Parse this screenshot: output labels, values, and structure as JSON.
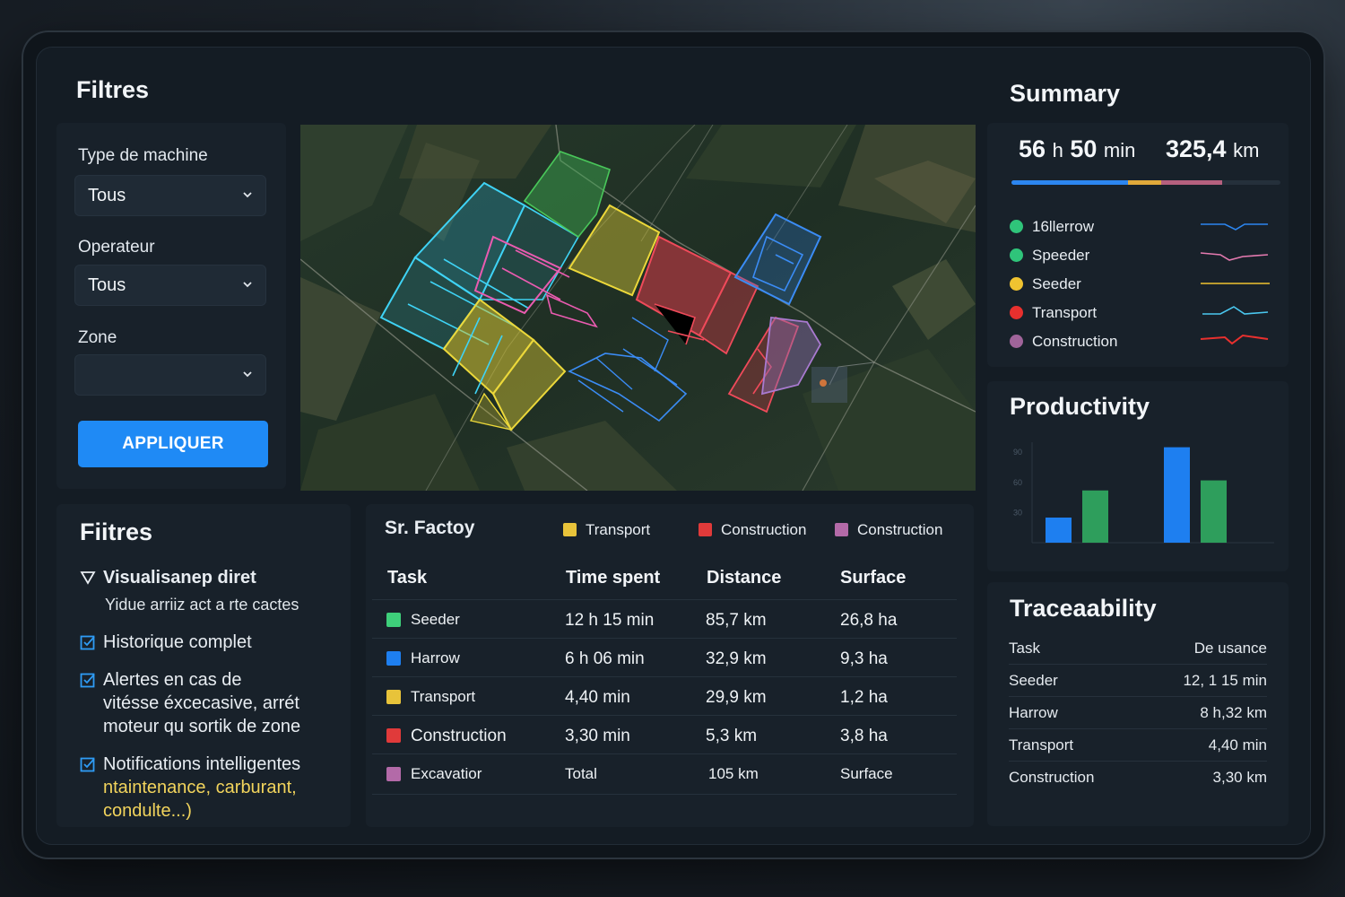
{
  "filters": {
    "title": "Filtres",
    "machine_type_label": "Type de machine",
    "machine_type_value": "Tous",
    "operator_label": "Operateur",
    "operator_value": "Tous",
    "zone_label": "Zone",
    "zone_value": "",
    "apply_label": "APPLIQUER"
  },
  "features": {
    "title": "Fiitres",
    "items": [
      {
        "icon": "funnel-icon",
        "line1": "Visualisanep diret",
        "line2": "Yidue arriiz act a rte cactes"
      },
      {
        "icon": "checkbox-icon",
        "line1": "Historique complet"
      },
      {
        "icon": "checkbox-icon",
        "line1": "Alertes en cas de",
        "line2": "vitésse éxcecasive, arrét",
        "line3": "moteur qu sortik de zone"
      },
      {
        "icon": "checkbox-icon",
        "line1": "Notifications intelligentes",
        "line2": "ntaintenance, carburant,",
        "line3": "condulte...)"
      }
    ]
  },
  "table": {
    "title": "Sr. Factoy",
    "legend": [
      {
        "label": "Transport",
        "color": "#e8c33a"
      },
      {
        "label": "Construction",
        "color": "#e03a3a"
      },
      {
        "label": "Construction",
        "color": "#b36aa8"
      }
    ],
    "headers": [
      "Task",
      "Time spent",
      "Distance",
      "Surface"
    ],
    "rows": [
      {
        "task": "Seeder",
        "time": "12 h 15 min",
        "distance": "85,7 km",
        "surface": "26,8 ha",
        "color": "#3ecf7a"
      },
      {
        "task": "Harrow",
        "time": "6 h 06 min",
        "distance": "32,9 km",
        "surface": "9,3 ha",
        "color": "#1e7ff0"
      },
      {
        "task": "Transport",
        "time": "4,40 min",
        "distance": "29,9 km",
        "surface": "1,2 ha",
        "color": "#e8c33a"
      },
      {
        "task": "Construction",
        "time": "3,30 min",
        "distance": "5,3 km",
        "surface": "3,8 ha",
        "color": "#e03a3a"
      },
      {
        "task": "Excavatior",
        "time": "Total",
        "distance": "105 km",
        "surface": "Surface",
        "color": "#b36aa8"
      }
    ]
  },
  "summary": {
    "title": "Summary",
    "time_num1": "56",
    "time_unit1": "h",
    "time_num2": "50",
    "time_unit2": "min",
    "dist_num": "325,4",
    "dist_unit": "km",
    "items": [
      {
        "label": "16llerrow",
        "color": "#2fc47a"
      },
      {
        "label": "Speeder",
        "color": "#2fc47a"
      },
      {
        "label": "Seeder",
        "color": "#f0c330"
      },
      {
        "label": "Transport",
        "color": "#e8302e"
      },
      {
        "label": "Construction",
        "color": "#a0649a"
      }
    ]
  },
  "productivity": {
    "title": "Productivity"
  },
  "chart_data": {
    "type": "bar",
    "categories": [
      "",
      ""
    ],
    "series": [
      {
        "color": "#1e7ff0",
        "values": [
          25,
          95
        ]
      },
      {
        "color": "#2e9e5c",
        "values": [
          52,
          62
        ]
      }
    ],
    "yticks": [
      "90",
      "60",
      "30"
    ],
    "ylim": [
      0,
      100
    ]
  },
  "traceability": {
    "title": "Traceaability",
    "header_left": "Task",
    "header_right": "De usance",
    "rows": [
      {
        "task": "Seeder",
        "value": "12, 1 15 min"
      },
      {
        "task": "Harrow",
        "value": "8 h,32 km"
      },
      {
        "task": "Transport",
        "value": "4,40 min"
      },
      {
        "task": "Construction",
        "value": "3,30 km"
      }
    ]
  }
}
